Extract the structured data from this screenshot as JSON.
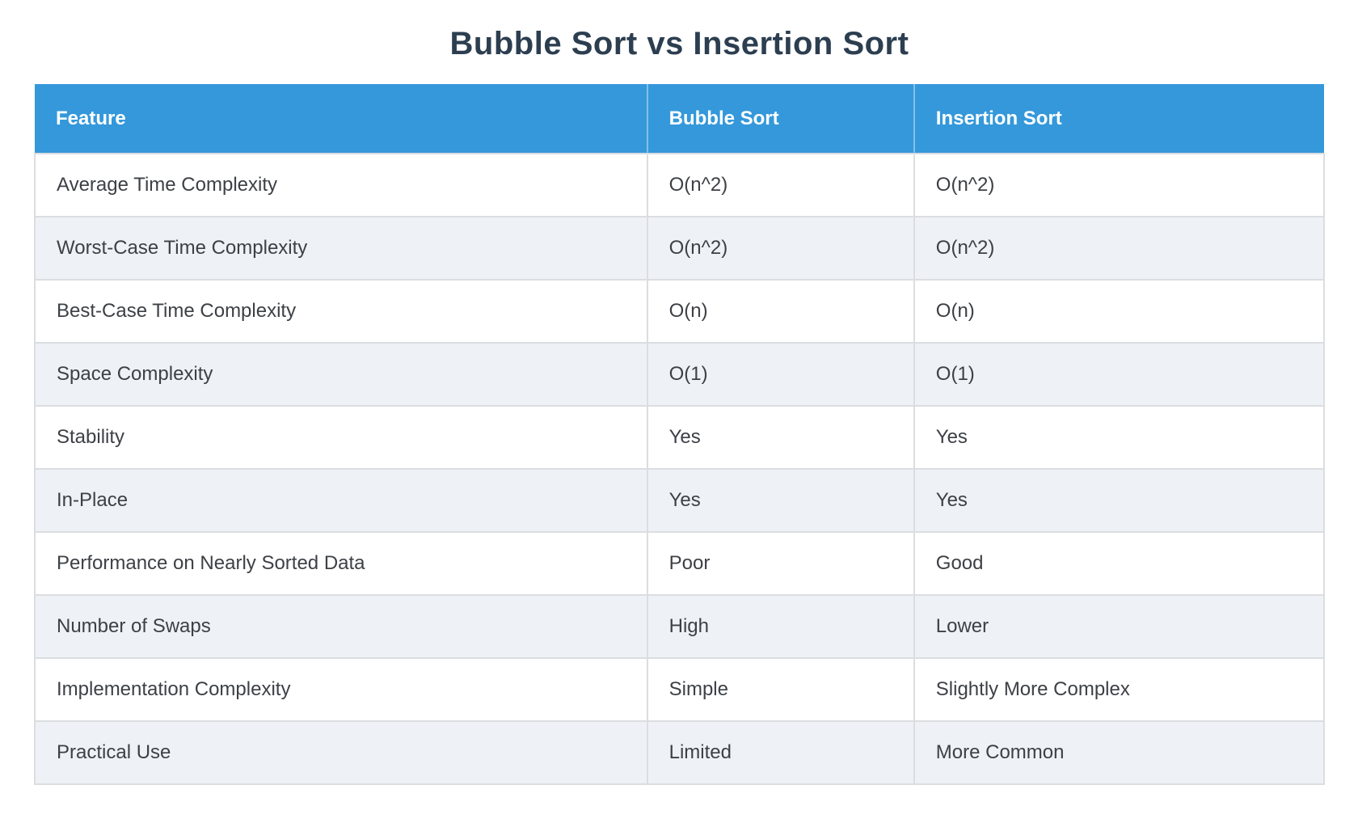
{
  "title": "Bubble Sort vs Insertion Sort",
  "chart_data": {
    "type": "table",
    "title": "Bubble Sort vs Insertion Sort",
    "columns": [
      "Feature",
      "Bubble Sort",
      "Insertion Sort"
    ],
    "rows": [
      [
        "Average Time Complexity",
        "O(n^2)",
        "O(n^2)"
      ],
      [
        "Worst-Case Time Complexity",
        "O(n^2)",
        "O(n^2)"
      ],
      [
        "Best-Case Time Complexity",
        "O(n)",
        "O(n)"
      ],
      [
        "Space Complexity",
        "O(1)",
        "O(1)"
      ],
      [
        "Stability",
        "Yes",
        "Yes"
      ],
      [
        "In-Place",
        "Yes",
        "Yes"
      ],
      [
        "Performance on Nearly Sorted Data",
        "Poor",
        "Good"
      ],
      [
        "Number of Swaps",
        "High",
        "Lower"
      ],
      [
        "Implementation Complexity",
        "Simple",
        "Slightly More Complex"
      ],
      [
        "Practical Use",
        "Limited",
        "More Common"
      ]
    ],
    "layout": {
      "header_position": "top",
      "zebra_striping": true,
      "text_align": "left"
    }
  },
  "colors": {
    "header_bg": "#3498db",
    "header_text": "#ffffff",
    "row_bg": "#ffffff",
    "row_alt_bg": "#eef2f7",
    "border": "#dbdde0",
    "title_text": "#2c3e50",
    "cell_text": "#3d4045"
  }
}
